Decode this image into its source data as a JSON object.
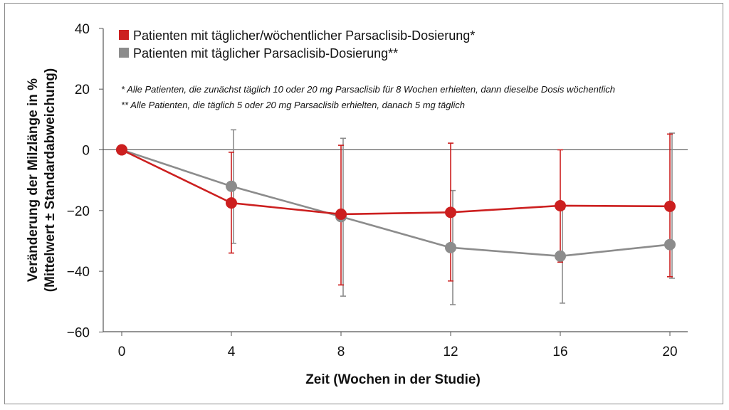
{
  "chart_data": {
    "type": "line",
    "xlabel": "Zeit (Wochen in der Studie)",
    "ylabel_lines": [
      "Veränderung der Milzlänge in %",
      "(Mittelwert ± Standardabweichung)"
    ],
    "x_ticks": [
      0,
      4,
      8,
      12,
      16,
      20
    ],
    "y_ticks": [
      40,
      20,
      0,
      -20,
      -40,
      -60
    ],
    "y_tick_labels": [
      "40",
      "20",
      "0",
      "−20",
      "−40",
      "−60"
    ],
    "xlim": [
      0,
      20.7
    ],
    "ylim": [
      -60,
      40
    ],
    "zero_line": true,
    "grid": false,
    "legend_position": "top-left",
    "series": [
      {
        "name": "Patienten mit täglicher/wöchentlicher Parsaclisib-Dosierung*",
        "color": "#cc1f1f",
        "x": [
          0,
          4,
          8,
          12,
          16,
          20
        ],
        "y": [
          0,
          -17.5,
          -21.2,
          -20.6,
          -18.4,
          -18.6
        ],
        "err_lower": [
          0,
          -34,
          -44.5,
          -43.2,
          -37,
          -41.8
        ],
        "err_upper": [
          0,
          -0.8,
          1.5,
          2.2,
          0,
          5.2
        ]
      },
      {
        "name": "Patienten mit täglicher Parsaclisib-Dosierung**",
        "color": "#8c8c8c",
        "x": [
          0,
          4,
          8,
          12,
          16,
          20
        ],
        "y": [
          0,
          -12,
          -22,
          -32.2,
          -35,
          -31.2
        ],
        "err_lower": [
          0,
          -30.8,
          -48.2,
          -51,
          -50.5,
          -42.3
        ],
        "err_upper": [
          0,
          6.6,
          3.8,
          -13.4,
          -19.5,
          5.5
        ]
      }
    ],
    "footnotes": [
      "* Alle Patienten, die zunächst täglich 10 oder 20 mg Parsaclisib für 8 Wochen erhielten, dann dieselbe Dosis wöchentlich",
      "** Alle Patienten, die täglich 5 oder 20 mg Parsaclisib erhielten, danach 5 mg täglich"
    ]
  }
}
